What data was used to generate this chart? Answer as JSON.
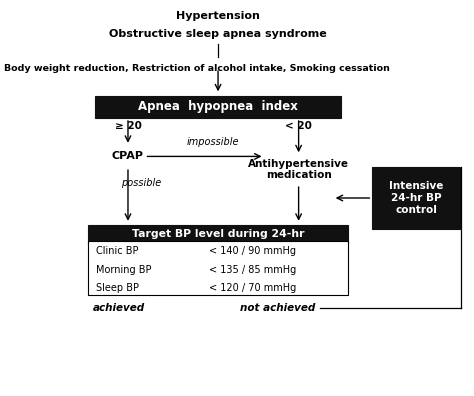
{
  "bg_color": "#ffffff",
  "title_line1": "Hypertension",
  "title_line2": "Obstructive sleep apnea syndrome",
  "lifestyle_text": "Body weight reduction, Restriction of alcohol intake, Smoking cessation",
  "ahi_box_text": "Apnea  hypopnea  index",
  "ahi_box_color": "#111111",
  "ahi_text_color": "#ffffff",
  "ge20_label": "≥ 20",
  "lt20_label": "< 20",
  "cpap_text": "CPAP",
  "impossible_text": "impossible",
  "possible_text": "possible",
  "antihyp_text": "Antihypertensive\nmedication",
  "target_header": "Target BP level during 24-hr",
  "target_box_color": "#111111",
  "target_text_color": "#ffffff",
  "bp_rows": [
    [
      "Clinic BP",
      "< 140 / 90 mmHg"
    ],
    [
      "Morning BP",
      "< 135 / 85 mmHg"
    ],
    [
      "Sleep BP",
      "< 120 / 70 mmHg"
    ]
  ],
  "achieved_text": "achieved",
  "not_achieved_text": "not achieved",
  "intensive_text": "Intensive\n24-hr BP\ncontrol",
  "intensive_box_color": "#111111",
  "intensive_text_color": "#ffffff",
  "figsize": [
    4.74,
    3.96
  ],
  "dpi": 100,
  "xlim": [
    0,
    10
  ],
  "ylim": [
    0,
    10
  ]
}
